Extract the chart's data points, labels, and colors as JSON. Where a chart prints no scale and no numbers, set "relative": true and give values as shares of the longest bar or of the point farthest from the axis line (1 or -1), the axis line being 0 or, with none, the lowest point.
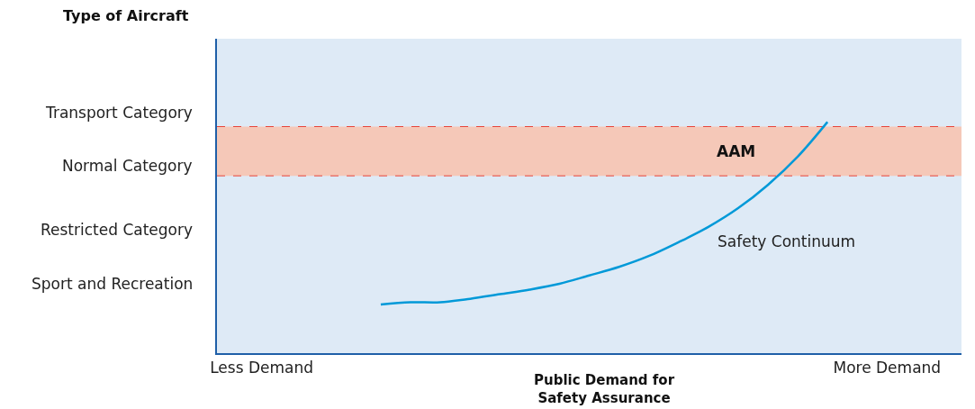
{
  "chart_data": {
    "type": "line",
    "relative": true,
    "xlabel": "Public Demand for Safety Assurance",
    "categories": [
      null,
      "Less Demand",
      null,
      null,
      null,
      null,
      null,
      null,
      null,
      null,
      null,
      null,
      null,
      null,
      null,
      null,
      null,
      null,
      null,
      null,
      null,
      null,
      "More Demand",
      null,
      null
    ],
    "series": [
      {
        "name": "Safety Continuum",
        "color": "#0099d8",
        "values": [
          null,
          null,
          null,
          null,
          null,
          0.21,
          0.22,
          0.22,
          0.235,
          0.255,
          0.275,
          0.3,
          0.336,
          0.373,
          0.42,
          0.48,
          0.546,
          0.627,
          0.728,
          0.85,
          1,
          null,
          null,
          null,
          null
        ]
      }
    ],
    "bands": [
      {
        "axis": "y",
        "from": 0.767,
        "to": 0.98,
        "label": "AAM",
        "color": "#f5c8b8"
      }
    ],
    "ref_lines": [
      {
        "axis": "y",
        "value": 0.767,
        "color": "#e8443a",
        "line_style": "dashed"
      },
      {
        "axis": "y",
        "value": 0.98,
        "color": "#e8443a",
        "line_style": "dashed"
      }
    ],
    "annotations": [
      "Sport and Recreation",
      "Restricted Category",
      "Normal Category",
      "Transport Category",
      "Type of Aircraft"
    ],
    "grid": false,
    "legend": false,
    "marker": "none",
    "line_style": "solid"
  }
}
